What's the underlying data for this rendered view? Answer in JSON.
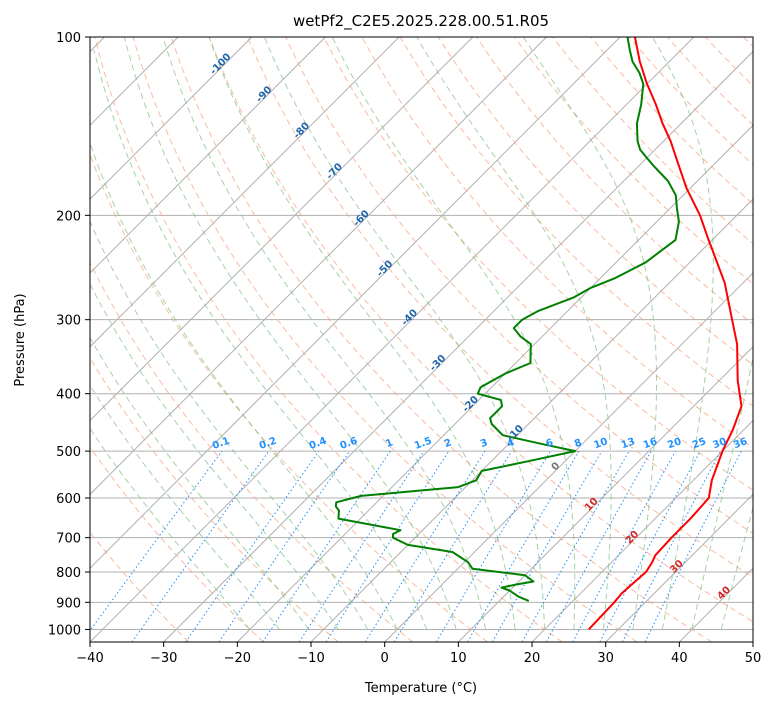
{
  "chart_data": {
    "type": "skewt",
    "title": "wetPf2_C2E5.2025.228.00.51.R05",
    "xlabel": "Temperature (°C)",
    "ylabel": "Pressure (hPa)",
    "xlim": [
      -40,
      50
    ],
    "ylim": [
      1050,
      100
    ],
    "x_ticks": [
      -40,
      -30,
      -20,
      -10,
      0,
      10,
      20,
      30,
      40,
      50
    ],
    "y_ticks": [
      100,
      200,
      300,
      400,
      500,
      600,
      700,
      800,
      900,
      1000
    ],
    "y_scale": "log",
    "grid": true,
    "colors": {
      "temperature": "#ff0000",
      "dewpoint": "#008000",
      "isotherm": "#b0b0b0",
      "dry_adiabat": "#f4a582",
      "moist_adiabat": "#7fbf7f",
      "mixing_ratio": "#1e90ff",
      "isotherm_label": "#2166ac",
      "warm_label": "#d62728"
    },
    "series": [
      {
        "name": "Temperature",
        "points": [
          [
            1000,
            26
          ],
          [
            900,
            25.8
          ],
          [
            870,
            25.6
          ],
          [
            830,
            25.8
          ],
          [
            800,
            26
          ],
          [
            770,
            25.5
          ],
          [
            750,
            25
          ],
          [
            700,
            24.8
          ],
          [
            650,
            24.8
          ],
          [
            600,
            24.5
          ],
          [
            560,
            22.5
          ],
          [
            500,
            20.0
          ],
          [
            460,
            18.5
          ],
          [
            420,
            16.5
          ],
          [
            380,
            12.5
          ],
          [
            330,
            7.5
          ],
          [
            300,
            3.5
          ],
          [
            260,
            -2.5
          ],
          [
            220,
            -10.5
          ],
          [
            200,
            -15.0
          ],
          [
            180,
            -20.5
          ],
          [
            160,
            -26.0
          ],
          [
            150,
            -29.0
          ],
          [
            140,
            -32.5
          ],
          [
            130,
            -36.0
          ],
          [
            120,
            -40.0
          ],
          [
            110,
            -44.0
          ],
          [
            100,
            -48.0
          ]
        ]
      },
      {
        "name": "Dewpoint",
        "points": [
          [
            895,
            14
          ],
          [
            880,
            12
          ],
          [
            860,
            10
          ],
          [
            850,
            8.5
          ],
          [
            840,
            10
          ],
          [
            830,
            12
          ],
          [
            810,
            10
          ],
          [
            790,
            2
          ],
          [
            770,
            0.5
          ],
          [
            740,
            -3
          ],
          [
            720,
            -10
          ],
          [
            700,
            -13
          ],
          [
            690,
            -13.5
          ],
          [
            680,
            -13
          ],
          [
            650,
            -23
          ],
          [
            630,
            -24
          ],
          [
            620,
            -25
          ],
          [
            610,
            -25.5
          ],
          [
            595,
            -23
          ],
          [
            585,
            -17
          ],
          [
            575,
            -11
          ],
          [
            560,
            -9.5
          ],
          [
            540,
            -10
          ],
          [
            520,
            -5
          ],
          [
            500,
            0
          ],
          [
            485,
            -6
          ],
          [
            470,
            -12
          ],
          [
            450,
            -15
          ],
          [
            440,
            -16
          ],
          [
            420,
            -16
          ],
          [
            410,
            -17
          ],
          [
            400,
            -21
          ],
          [
            390,
            -21.5
          ],
          [
            370,
            -20
          ],
          [
            355,
            -18
          ],
          [
            340,
            -19.5
          ],
          [
            330,
            -20.5
          ],
          [
            320,
            -23
          ],
          [
            310,
            -25
          ],
          [
            300,
            -25
          ],
          [
            290,
            -24
          ],
          [
            275,
            -21
          ],
          [
            265,
            -20
          ],
          [
            255,
            -18
          ],
          [
            240,
            -16
          ],
          [
            220,
            -15
          ],
          [
            205,
            -17
          ],
          [
            195,
            -19
          ],
          [
            185,
            -21
          ],
          [
            175,
            -24
          ],
          [
            165,
            -28
          ],
          [
            160,
            -30
          ],
          [
            155,
            -32
          ],
          [
            150,
            -33.5
          ],
          [
            140,
            -36
          ],
          [
            130,
            -38
          ],
          [
            120,
            -40.5
          ],
          [
            115,
            -42.5
          ],
          [
            110,
            -45
          ],
          [
            105,
            -47
          ],
          [
            100,
            -49
          ]
        ]
      }
    ],
    "annotations": {
      "isotherm_labels": [
        "-100",
        "-90",
        "-80",
        "-70",
        "-60",
        "-50",
        "-40",
        "-30",
        "-20",
        "-10"
      ],
      "zero_label": "0",
      "warm_labels": [
        "10",
        "20",
        "30",
        "40"
      ],
      "mixing_ratio_labels": [
        "0.1",
        "0.2",
        "0.4",
        "0.6",
        "1",
        "1.5",
        "2",
        "3",
        "4",
        "6",
        "8",
        "10",
        "13",
        "16",
        "20",
        "25",
        "30",
        "36"
      ]
    }
  }
}
